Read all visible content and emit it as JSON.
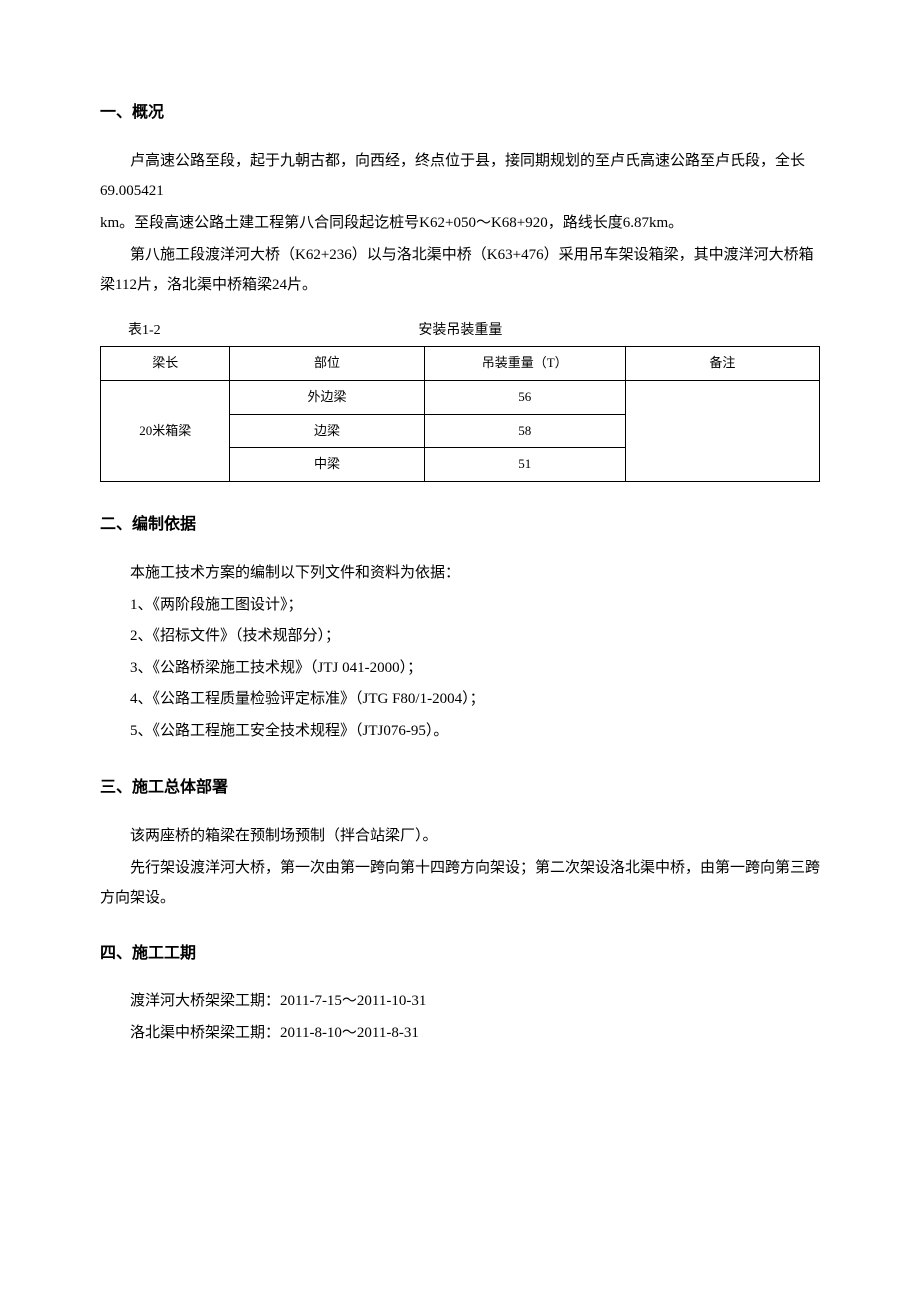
{
  "section1": {
    "heading": "一、概况",
    "p1": "卢高速公路至段，起于九朝古都，向西经，终点位于县，接同期规划的至卢氏高速公路至卢氏段，全长69.005421",
    "p2": "km。至段高速公路土建工程第八合同段起讫桩号K62+050～K68+920，路线长度6.87km。",
    "p3": "第八施工段渡洋河大桥（K62+236）以与洛北渠中桥（K63+476）采用吊车架设箱梁，其中渡洋河大桥箱梁112片，洛北渠中桥箱梁24片。"
  },
  "table": {
    "caption_left": "表1-2",
    "caption_center": "安装吊装重量",
    "headers": {
      "beam_length": "梁长",
      "position": "部位",
      "weight": "吊装重量（T）",
      "remark": "备注"
    },
    "beam_length_value": "20米箱梁",
    "rows": [
      {
        "position": "外边梁",
        "weight": "56",
        "remark": ""
      },
      {
        "position": "边梁",
        "weight": "58",
        "remark": ""
      },
      {
        "position": "中梁",
        "weight": "51",
        "remark": ""
      }
    ]
  },
  "section2": {
    "heading": "二、编制依据",
    "intro": "本施工技术方案的编制以下列文件和资料为依据：",
    "items": [
      "1、《两阶段施工图设计》；",
      "2、《招标文件》（技术规部分）；",
      "3、《公路桥梁施工技术规》（JTJ 041-2000）；",
      "4、《公路工程质量检验评定标准》（JTG F80/1-2004）；",
      "5、《公路工程施工安全技术规程》（JTJ076-95）。"
    ]
  },
  "section3": {
    "heading": "三、施工总体部署",
    "p1": "该两座桥的箱梁在预制场预制（拌合站梁厂）。",
    "p2": "先行架设渡洋河大桥，第一次由第一跨向第十四跨方向架设；第二次架设洛北渠中桥，由第一跨向第三跨方向架设。"
  },
  "section4": {
    "heading": "四、施工工期",
    "p1": "渡洋河大桥架梁工期：2011-7-15～2011-10-31",
    "p2": "洛北渠中桥架梁工期：2011-8-10～2011-8-31"
  }
}
